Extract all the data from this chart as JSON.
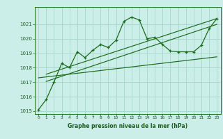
{
  "bg_color": "#cceee8",
  "grid_color": "#aad8d0",
  "line_color": "#1a6b1a",
  "text_color": "#1a5c1a",
  "xlabel": "Graphe pression niveau de la mer (hPa)",
  "xlim": [
    -0.5,
    23.5
  ],
  "ylim": [
    1014.8,
    1022.2
  ],
  "yticks": [
    1015,
    1016,
    1017,
    1018,
    1019,
    1020,
    1021
  ],
  "xticks": [
    0,
    1,
    2,
    3,
    4,
    5,
    6,
    7,
    8,
    9,
    10,
    11,
    12,
    13,
    14,
    15,
    16,
    17,
    18,
    19,
    20,
    21,
    22,
    23
  ],
  "main_line": [
    1015.1,
    1015.8,
    1017.0,
    1018.3,
    1018.0,
    1019.1,
    1018.7,
    1019.2,
    1019.6,
    1019.4,
    1019.9,
    1021.2,
    1021.5,
    1021.3,
    1020.0,
    1020.1,
    1019.6,
    1019.15,
    1019.1,
    1019.1,
    1019.1,
    1019.55,
    1020.7,
    1021.4
  ],
  "trend_line1": [
    [
      1,
      23
    ],
    [
      1017.05,
      1021.0
    ]
  ],
  "trend_line2": [
    [
      1,
      23
    ],
    [
      1017.55,
      1021.4
    ]
  ],
  "trend_line3": [
    [
      0,
      23
    ],
    [
      1017.3,
      1018.75
    ]
  ],
  "xlabel_fontsize": 5.5,
  "ytick_fontsize": 5.0,
  "xtick_fontsize": 4.2
}
